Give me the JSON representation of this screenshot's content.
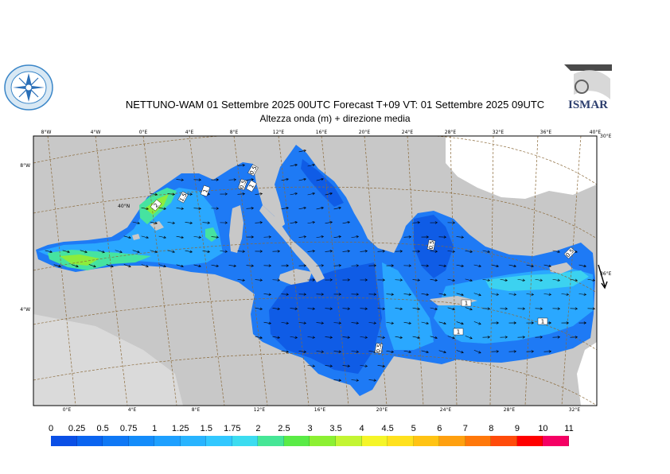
{
  "title_line1": "NETTUNO-WAM  01 Settembre 2025 00UTC Forecast T+09 VT: 01 Settembre 2025 09UTC",
  "title_line2": "Altezza onda (m) + direzione media",
  "logo_right_text": "ISMAR",
  "top_ticks": [
    "8°W",
    "4°W",
    "0°E",
    "4°E",
    "8°E",
    "12°E",
    "16°E",
    "20°E",
    "24°E",
    "28°E",
    "32°E",
    "36°E",
    "40°E"
  ],
  "bottom_ticks": [
    "0°E",
    "4°E",
    "8°E",
    "12°E",
    "16°E",
    "20°E",
    "24°E",
    "28°E",
    "32°E"
  ],
  "left_ticks": [
    "8°W",
    "4°W"
  ],
  "right_ticks": [
    "30°E",
    "36°E"
  ],
  "inner_lat_label": "40°N",
  "contour_labels": [
    "2",
    "1.5",
    "1",
    "0.5",
    "1",
    "0.5",
    "1",
    "1",
    "1",
    "0.5",
    "0.5",
    "0.5"
  ],
  "legend": {
    "labels": [
      "0",
      "0.25",
      "0.5",
      "0.75",
      "1",
      "1.25",
      "1.5",
      "1.75",
      "2",
      "2.5",
      "3",
      "3.5",
      "4",
      "4.5",
      "5",
      "6",
      "7",
      "8",
      "9",
      "10",
      "11"
    ],
    "colors": [
      "#0a4fe6",
      "#0a64f0",
      "#0f78f5",
      "#148cfa",
      "#1ea0ff",
      "#28b4ff",
      "#32c8ff",
      "#3cdcf0",
      "#46e696",
      "#5aeb46",
      "#8cf032",
      "#c3f532",
      "#f5f528",
      "#ffe11e",
      "#ffc314",
      "#ffa00f",
      "#ff780a",
      "#ff4b0a",
      "#ff0000",
      "#f50064"
    ]
  }
}
